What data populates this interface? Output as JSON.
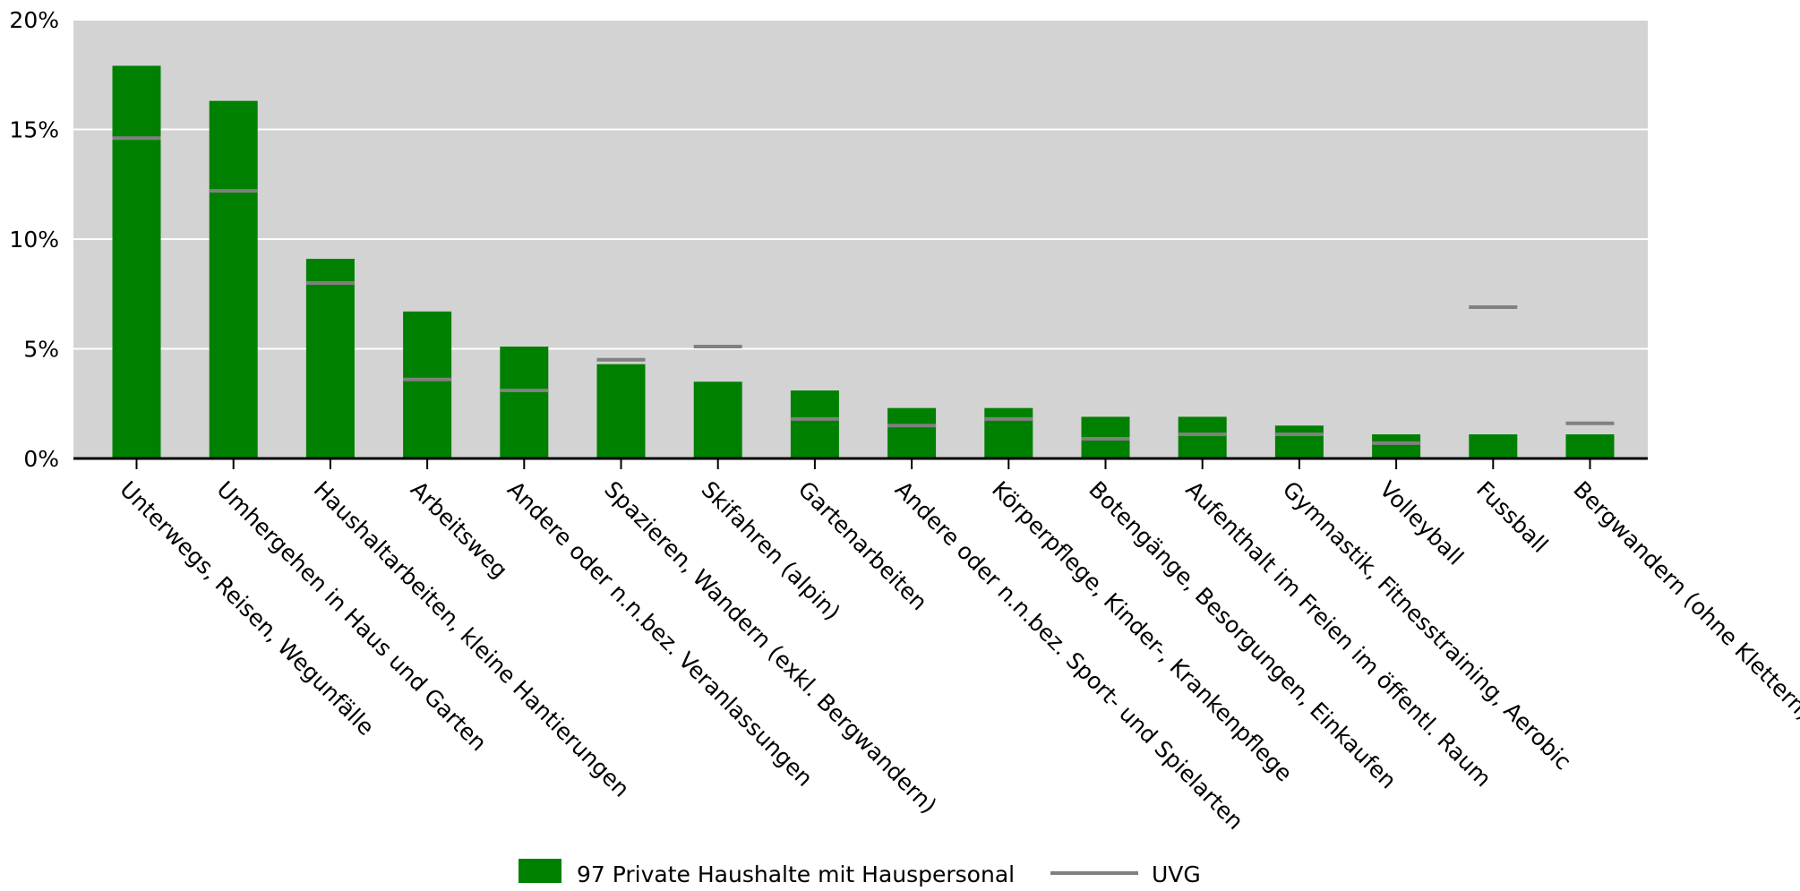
{
  "chart_data": {
    "type": "bar",
    "title": "",
    "xlabel": "",
    "ylabel": "",
    "ylim": [
      0,
      20
    ],
    "yticks": [
      "0%",
      "5%",
      "10%",
      "15%",
      "20%"
    ],
    "grid": true,
    "legend_position": "bottom-center",
    "colors": {
      "plot_background": "#d3d3d3",
      "bar": "#008000",
      "marker": "#808080",
      "grid": "#ffffff",
      "axis": "#000000"
    },
    "categories": [
      "Unterwegs, Reisen, Wegunfälle",
      "Umhergehen in Haus und Garten",
      "Haushaltarbeiten, kleine Hantierungen",
      "Arbeitsweg",
      "Andere oder n.n.bez. Veranlassungen",
      "Spazieren, Wandern (exkl. Bergwandern)",
      "Skifahren (alpin)",
      "Gartenarbeiten",
      "Andere oder n.n.bez. Sport- und Spielarten",
      "Körperpflege, Kinder-, Krankenpflege",
      "Botengänge, Besorgungen, Einkaufen",
      "Aufenthalt im Freien im öffentl. Raum",
      "Gymnastik, Fitnesstraining, Aerobic",
      "Volleyball",
      "Fussball",
      "Bergwandern (ohne Klettern)"
    ],
    "series": [
      {
        "name": "97 Private Haushalte mit Hauspersonal",
        "kind": "bar",
        "values": [
          17.9,
          16.3,
          9.1,
          6.7,
          5.1,
          4.3,
          3.5,
          3.1,
          2.3,
          2.3,
          1.9,
          1.9,
          1.5,
          1.1,
          1.1,
          1.1
        ]
      },
      {
        "name": "UVG",
        "kind": "marker",
        "values": [
          14.6,
          12.2,
          8.0,
          3.6,
          3.1,
          4.5,
          5.1,
          1.8,
          1.5,
          1.8,
          0.9,
          1.1,
          1.1,
          0.7,
          6.9,
          1.6
        ]
      }
    ]
  }
}
